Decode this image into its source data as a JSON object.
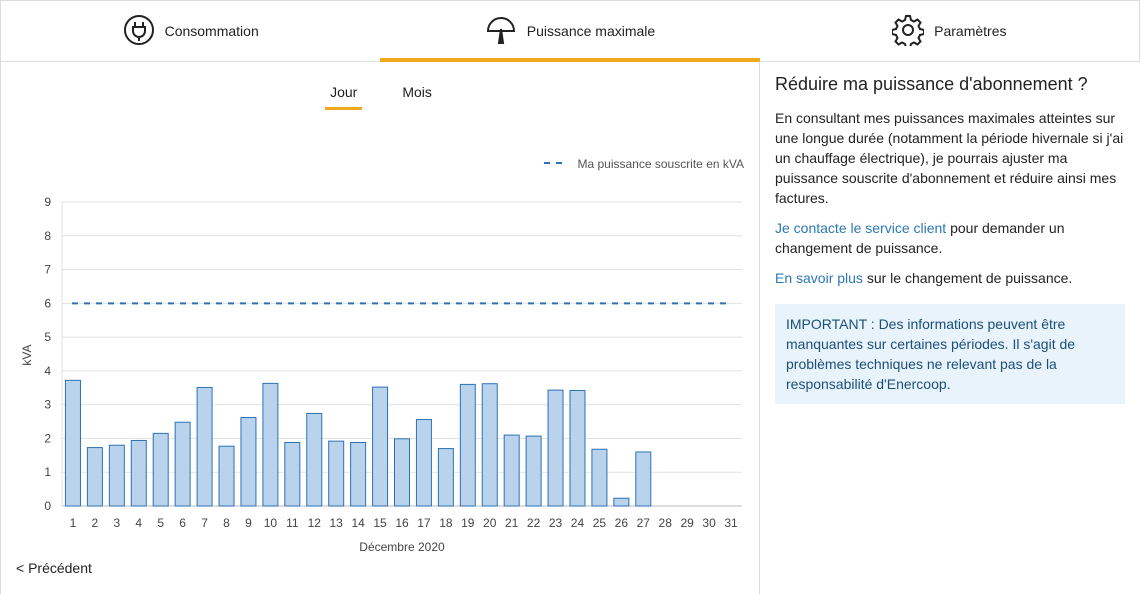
{
  "tabs": [
    {
      "label": "Consommation",
      "icon": "plug-icon"
    },
    {
      "label": "Puissance maximale",
      "icon": "gauge-icon"
    },
    {
      "label": "Paramètres",
      "icon": "gear-icon"
    }
  ],
  "subtabs": [
    "Jour",
    "Mois"
  ],
  "prev_label": "< Précédent",
  "colors": {
    "accent": "#f0a91a",
    "bar_fill": "#b9d3ec",
    "bar_stroke": "#2d72b3",
    "link": "#2b78b7",
    "notice_bg": "#e8f3fb"
  },
  "chart_data": {
    "type": "bar",
    "xlabel": "Décembre 2020",
    "ylabel": "kVA",
    "ylim": [
      0,
      9
    ],
    "yticks": [
      "0",
      "1",
      "2",
      "3",
      "4",
      "5",
      "6",
      "7",
      "8",
      "9"
    ],
    "categories": [
      "1",
      "2",
      "3",
      "4",
      "5",
      "6",
      "7",
      "8",
      "9",
      "10",
      "11",
      "12",
      "13",
      "14",
      "15",
      "16",
      "17",
      "18",
      "19",
      "20",
      "21",
      "22",
      "23",
      "24",
      "25",
      "26",
      "27",
      "28",
      "29",
      "30",
      "31"
    ],
    "values": [
      3.72,
      1.73,
      1.8,
      1.94,
      2.15,
      2.48,
      3.51,
      1.77,
      2.62,
      3.63,
      1.88,
      2.74,
      1.92,
      1.88,
      3.52,
      1.99,
      2.56,
      1.7,
      3.6,
      3.62,
      2.1,
      2.07,
      3.43,
      3.42,
      1.68,
      0.23,
      1.6,
      null,
      null,
      null,
      null
    ],
    "reference_line": {
      "value": 6,
      "label": "Ma puissance souscrite en kVA",
      "style": "dashed"
    },
    "legend_position": "top-right",
    "grid": true
  },
  "info": {
    "title": "Réduire ma puissance d'abonnement ?",
    "paragraph": "En consultant mes puissances maximales atteintes sur une longue durée (notamment la période hivernale si j'ai un chauffage électrique), je pourrais ajuster ma puissance souscrite d'abonnement et réduire ainsi mes factures.",
    "contact_link": "Je contacte le service client",
    "contact_rest": " pour demander un changement de puissance.",
    "more_link": "En savoir plus",
    "more_rest": " sur le changement de puissance.",
    "notice": "IMPORTANT : Des informations peuvent être manquantes sur certaines périodes. Il s'agit de problèmes techniques ne relevant pas de la responsabilité d'Enercoop."
  }
}
